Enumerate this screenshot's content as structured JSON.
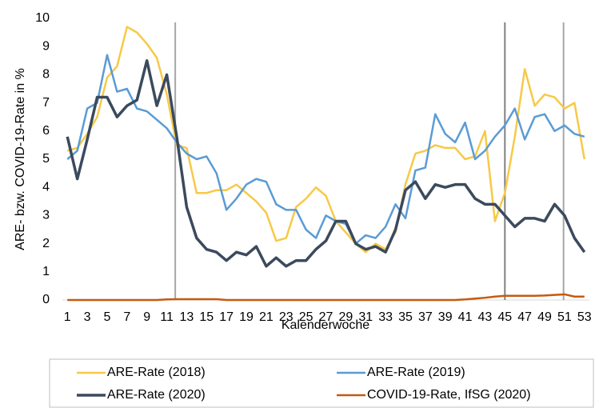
{
  "chart_data": {
    "type": "line",
    "x_label": "Kalenderwoche",
    "y_label": "ARE- bzw. COVID-19-Rate in %",
    "x": [
      1,
      2,
      3,
      4,
      5,
      6,
      7,
      8,
      9,
      10,
      11,
      12,
      13,
      14,
      15,
      16,
      17,
      18,
      19,
      20,
      21,
      22,
      23,
      24,
      25,
      26,
      27,
      28,
      29,
      30,
      31,
      32,
      33,
      34,
      35,
      36,
      37,
      38,
      39,
      40,
      41,
      42,
      43,
      44,
      45,
      46,
      47,
      48,
      49,
      50,
      51,
      52,
      53
    ],
    "xlim": [
      0.5,
      53.5
    ],
    "xticks": [
      1,
      3,
      5,
      7,
      9,
      11,
      13,
      15,
      17,
      19,
      21,
      23,
      25,
      27,
      29,
      31,
      33,
      35,
      37,
      39,
      41,
      43,
      45,
      47,
      49,
      51,
      53
    ],
    "ylim": [
      0,
      10
    ],
    "yticks": [
      0,
      1,
      2,
      3,
      4,
      5,
      6,
      7,
      8,
      9,
      10
    ],
    "vlines": [
      11.85,
      45,
      50.9
    ],
    "series": [
      {
        "name": "ARE-Rate (2018)",
        "color": "#f7c948",
        "values": [
          5.3,
          5.4,
          5.9,
          6.5,
          7.9,
          8.3,
          9.7,
          9.5,
          9.1,
          8.6,
          7.3,
          5.5,
          5.4,
          3.8,
          3.8,
          3.9,
          3.9,
          4.1,
          3.8,
          3.5,
          3.1,
          2.1,
          2.2,
          3.3,
          3.6,
          4.0,
          3.7,
          2.8,
          2.4,
          2.0,
          1.7,
          2.0,
          1.8,
          2.4,
          4.1,
          5.2,
          5.3,
          5.5,
          5.4,
          5.4,
          5.0,
          5.1,
          6.0,
          2.8,
          3.8,
          5.8,
          8.2,
          6.9,
          7.3,
          7.2,
          6.8,
          7.0,
          5.0
        ]
      },
      {
        "name": "ARE-Rate (2019)",
        "color": "#5b9bd5",
        "values": [
          5.0,
          5.3,
          6.8,
          7.0,
          8.7,
          7.4,
          7.5,
          6.8,
          6.7,
          6.4,
          6.1,
          5.6,
          5.2,
          5.0,
          5.1,
          4.5,
          3.2,
          3.6,
          4.1,
          4.3,
          4.2,
          3.4,
          3.2,
          3.2,
          2.5,
          2.2,
          3.0,
          2.8,
          2.7,
          2.0,
          2.3,
          2.2,
          2.6,
          3.4,
          2.9,
          4.6,
          4.7,
          6.6,
          5.9,
          5.6,
          6.3,
          5.0,
          5.3,
          5.8,
          6.2,
          6.8,
          5.7,
          6.5,
          6.6,
          6.0,
          6.2,
          5.9,
          5.8
        ]
      },
      {
        "name": "ARE-Rate (2020)",
        "color": "#3b4a5c",
        "values": [
          5.8,
          4.3,
          5.7,
          7.2,
          7.2,
          6.5,
          6.9,
          7.1,
          8.5,
          6.9,
          8.0,
          5.8,
          3.3,
          2.2,
          1.8,
          1.7,
          1.4,
          1.7,
          1.6,
          1.9,
          1.2,
          1.5,
          1.2,
          1.4,
          1.4,
          1.8,
          2.1,
          2.8,
          2.8,
          2.0,
          1.8,
          1.9,
          1.7,
          2.5,
          3.9,
          4.2,
          3.6,
          4.1,
          4.0,
          4.1,
          4.1,
          3.6,
          3.4,
          3.4,
          3.0,
          2.6,
          2.9,
          2.9,
          2.8,
          3.4,
          3.0,
          2.2,
          1.7
        ]
      },
      {
        "name": "COVID-19-Rate, IfSG (2020)",
        "color": "#c55a11",
        "values": [
          0,
          0,
          0,
          0,
          0,
          0,
          0,
          0,
          0,
          0,
          0.02,
          0.03,
          0.03,
          0.03,
          0.03,
          0.03,
          0,
          0,
          0,
          0,
          0,
          0,
          0,
          0,
          0,
          0,
          0,
          0,
          0,
          0,
          0,
          0,
          0,
          0,
          0,
          0,
          0,
          0,
          0,
          0,
          0.02,
          0.05,
          0.08,
          0.12,
          0.15,
          0.15,
          0.15,
          0.15,
          0.16,
          0.18,
          0.2,
          0.12,
          0.12
        ]
      }
    ]
  }
}
